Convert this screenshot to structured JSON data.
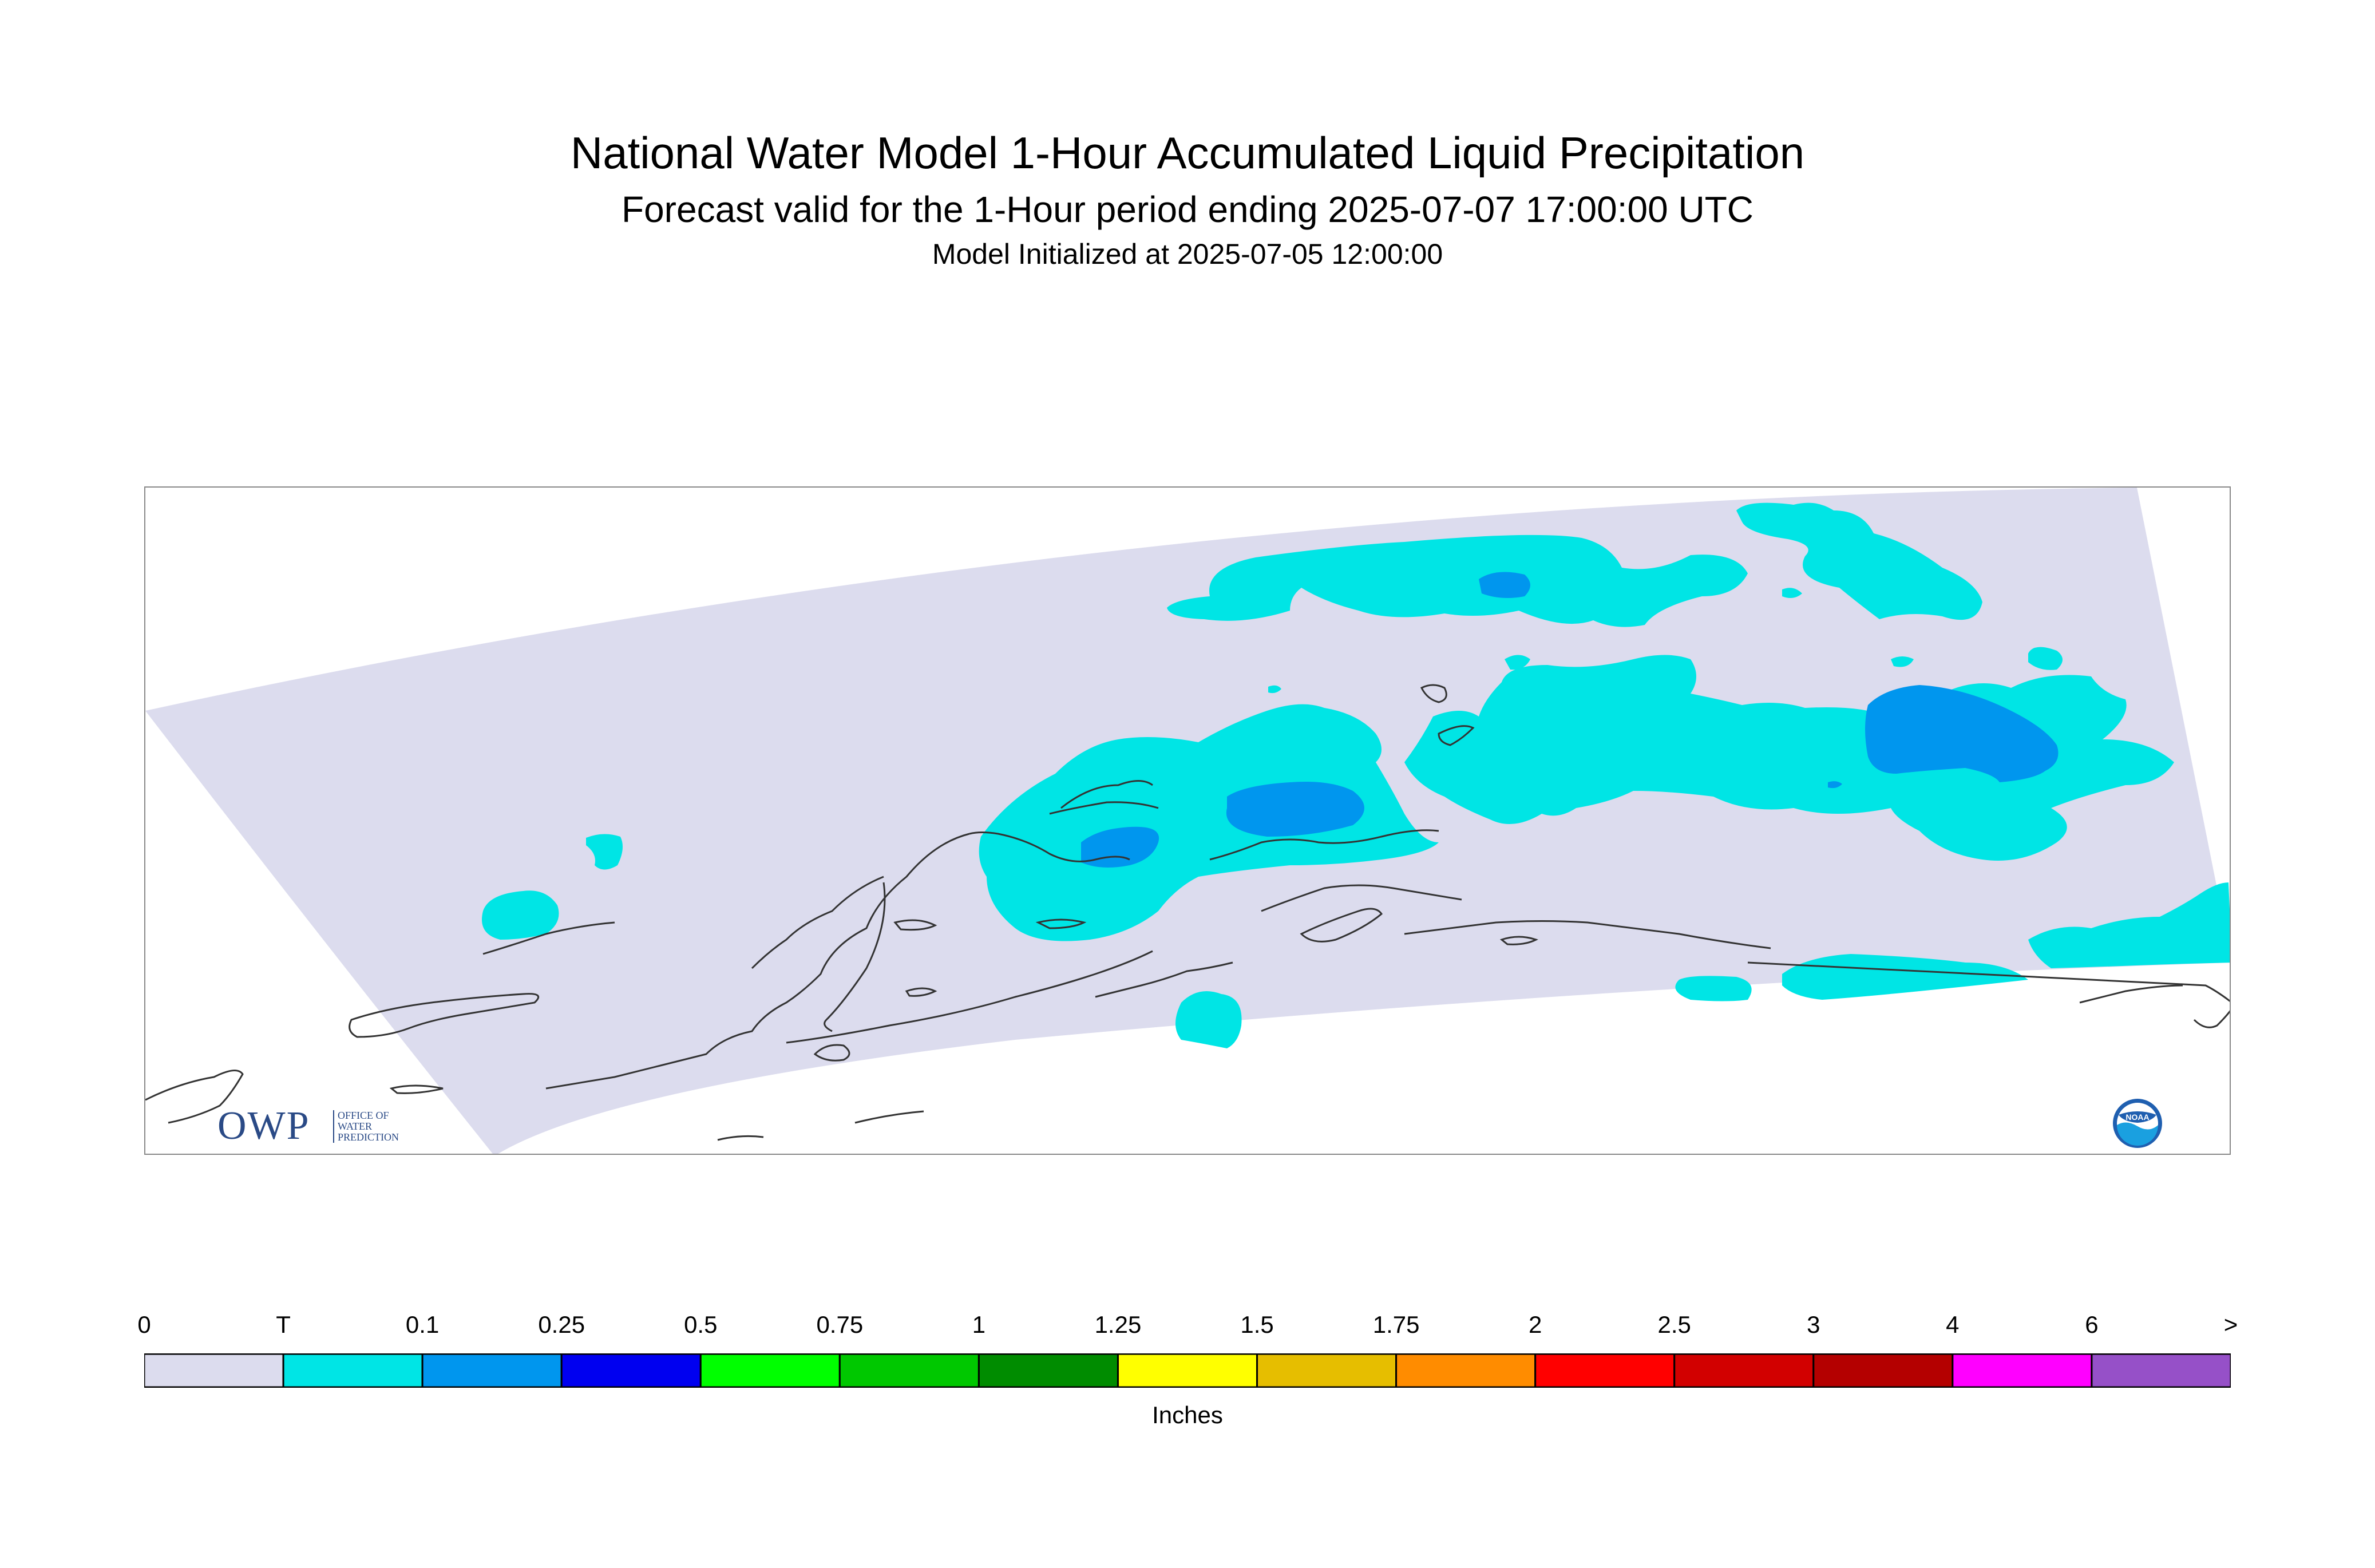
{
  "titles": {
    "main": "National Water Model 1-Hour Accumulated Liquid Precipitation",
    "sub": "Forecast valid for the 1-Hour period ending 2025-07-07 17:00:00 UTC",
    "init": "Model Initialized at 2025-07-05 12:00:00"
  },
  "colors": {
    "domain_bg": "#dcdcee",
    "trace": "#00e5e5",
    "light_blue": "#0096ee",
    "coast": "#333333",
    "frame": "#888888"
  },
  "legend": {
    "units": "Inches",
    "labels": [
      "0",
      "T",
      "0.1",
      "0.25",
      "0.5",
      "0.75",
      "1",
      "1.25",
      "1.5",
      "1.75",
      "2",
      "2.5",
      "3",
      "4",
      "6",
      ">"
    ],
    "colors": [
      "#dcdcee",
      "#00e5e5",
      "#0096ee",
      "#0000f0",
      "#00ff00",
      "#00c800",
      "#008c00",
      "#ffff00",
      "#e6be00",
      "#ff8c00",
      "#ff0000",
      "#d20000",
      "#b40000",
      "#ff00ff",
      "#9650c8"
    ]
  },
  "logos": {
    "owp_big": "OWP",
    "owp_small": [
      "OFFICE OF",
      "WATER",
      "PREDICTION"
    ],
    "noaa": "NOAA"
  }
}
